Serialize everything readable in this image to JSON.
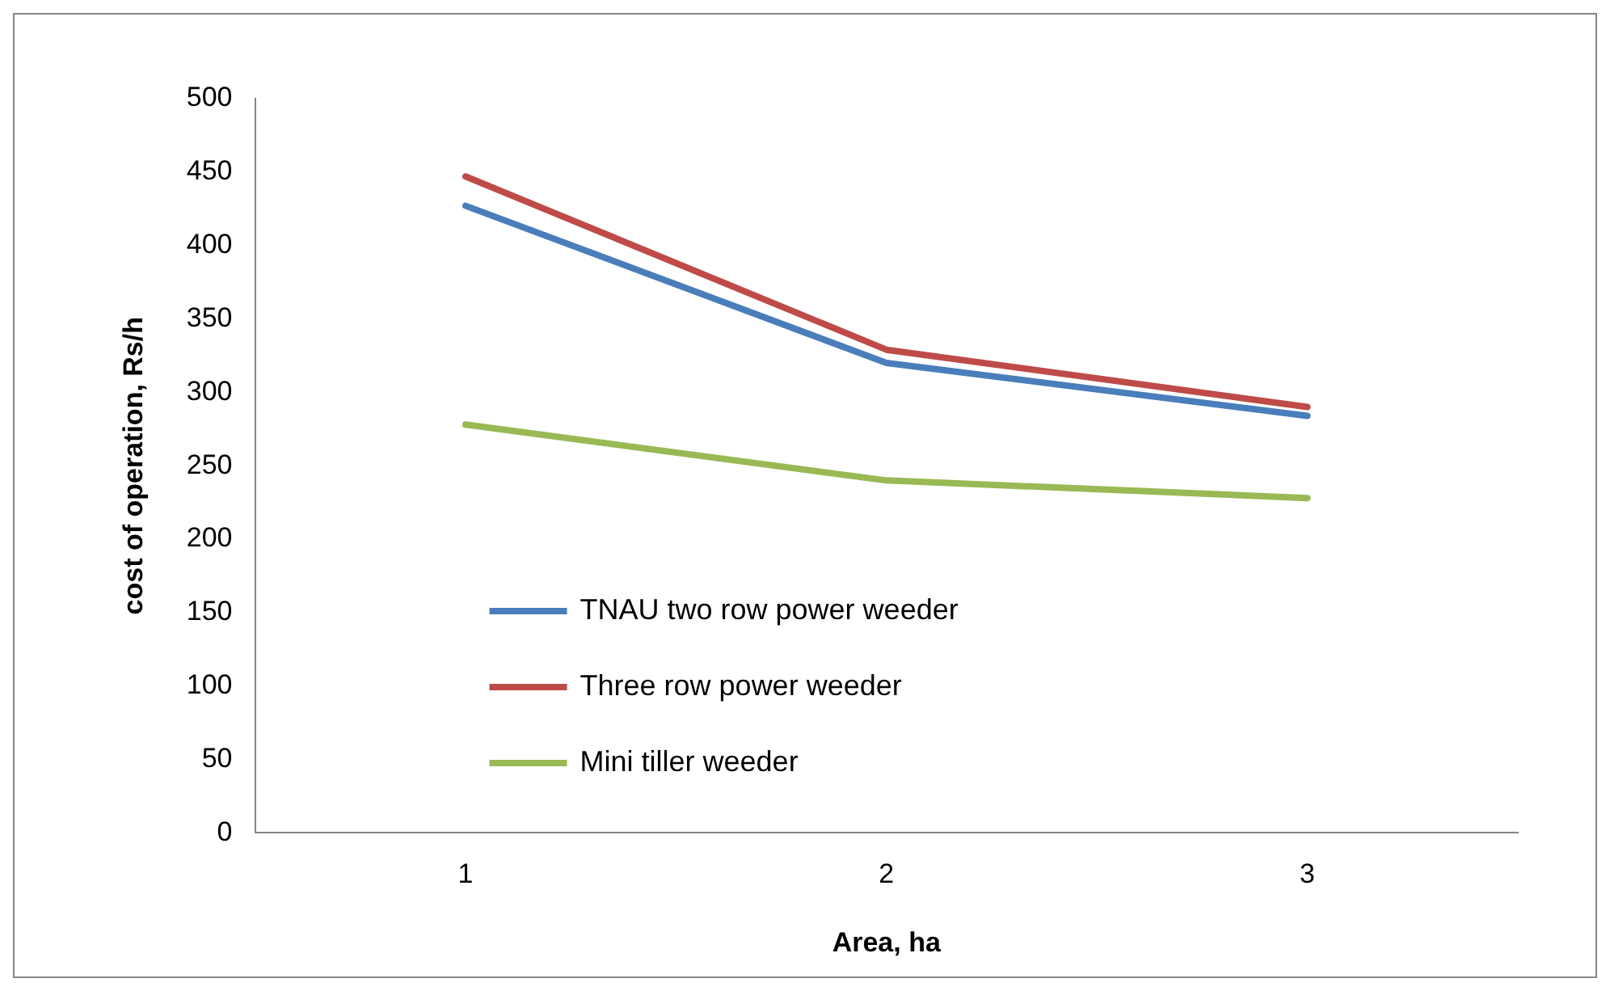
{
  "chart_data": {
    "type": "line",
    "xlabel": "Area, ha",
    "ylabel": "cost of operation, Rs/h",
    "categories": [
      "1",
      "2",
      "3"
    ],
    "series": [
      {
        "name": "TNAU two row power weeder",
        "color": "#4a7ebb",
        "values": [
          427,
          320,
          284
        ]
      },
      {
        "name": "Three row power weeder",
        "color": "#be4b48",
        "values": [
          447,
          329,
          290
        ]
      },
      {
        "name": "Mini tiller weeder",
        "color": "#98b954",
        "values": [
          278,
          240,
          228
        ]
      }
    ],
    "ylim": [
      0,
      500
    ],
    "yticks": [
      0,
      50,
      100,
      150,
      200,
      250,
      300,
      350,
      400,
      450,
      500
    ],
    "grid": false,
    "legend": "left",
    "marker": "none",
    "line_style": "solid"
  }
}
